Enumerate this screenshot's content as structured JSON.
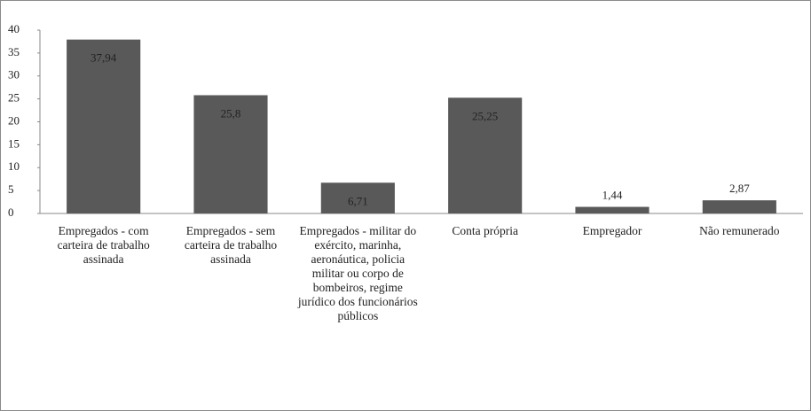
{
  "chart_data": {
    "type": "bar",
    "categories": [
      "Empregados - com carteira de trabalho assinada",
      "Empregados - sem carteira de trabalho assinada",
      "Empregados - militar do exército, marinha, aeronáutica, policia militar ou corpo de bombeiros, regime jurídico dos funcionários públicos",
      "Conta própria",
      "Empregador",
      "Não remunerado"
    ],
    "values": [
      37.94,
      25.8,
      6.71,
      25.25,
      1.44,
      2.87
    ],
    "value_labels": [
      "37,94",
      "25,8",
      "6,71",
      "25,25",
      "1,44",
      "2,87"
    ],
    "color": "#595959",
    "ylim": [
      0,
      40
    ],
    "yticks": [
      0,
      5,
      10,
      15,
      20,
      25,
      30,
      35,
      40
    ],
    "grid": false
  }
}
